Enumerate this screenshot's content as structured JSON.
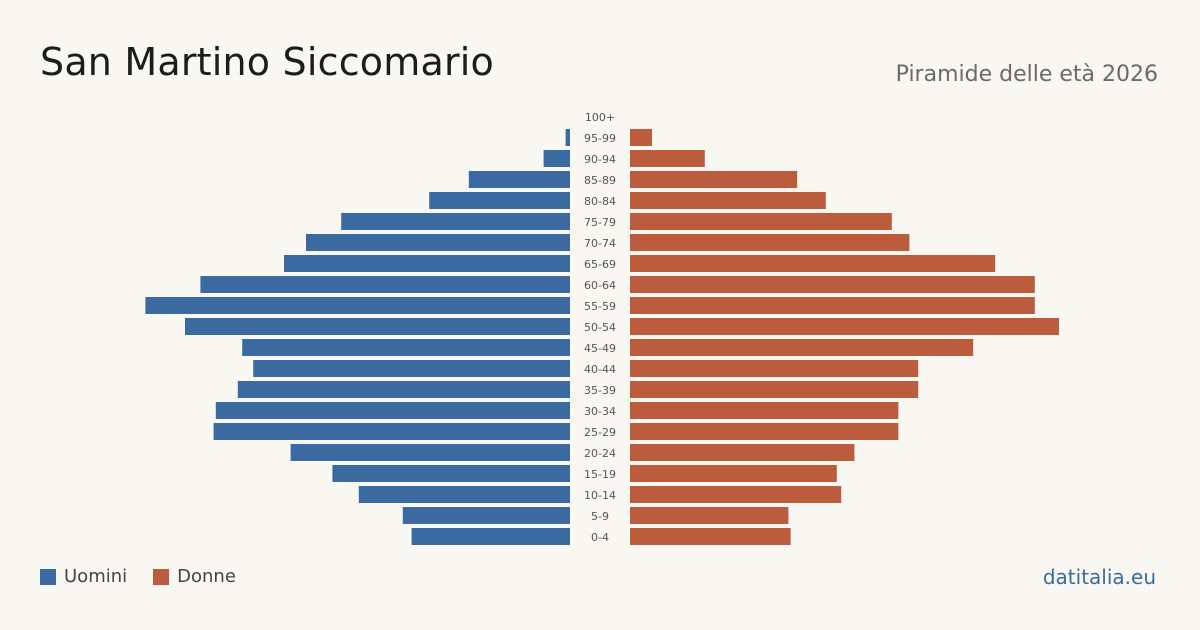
{
  "header": {
    "title": "San Martino Siccomario",
    "subtitle": "Piramide delle età 2026"
  },
  "legend": {
    "men_label": "Uomini",
    "women_label": "Donne"
  },
  "footer": {
    "brand": "datitalia.eu"
  },
  "colors": {
    "men": "#3b6aa0",
    "women": "#bb5c3c",
    "background": "#f9f7f2"
  },
  "chart_data": {
    "type": "bar",
    "orientation": "horizontal-pyramid",
    "categories": [
      "100+",
      "95-99",
      "90-94",
      "85-89",
      "80-84",
      "75-79",
      "70-74",
      "65-69",
      "60-64",
      "55-59",
      "50-54",
      "45-49",
      "40-44",
      "35-39",
      "30-34",
      "25-29",
      "20-24",
      "15-19",
      "10-14",
      "5-9",
      "0-4"
    ],
    "series": [
      {
        "name": "Uomini",
        "values": [
          0,
          2,
          12,
          46,
          64,
          104,
          120,
          130,
          168,
          193,
          175,
          149,
          144,
          151,
          161,
          162,
          127,
          108,
          96,
          76,
          72
        ]
      },
      {
        "name": "Donne",
        "values": [
          0,
          10,
          34,
          76,
          89,
          119,
          127,
          166,
          184,
          184,
          195,
          156,
          131,
          131,
          122,
          122,
          102,
          94,
          96,
          72,
          73
        ]
      }
    ],
    "xlim": [
      0,
      200
    ],
    "grid": false,
    "legend_position": "bottom-left"
  }
}
